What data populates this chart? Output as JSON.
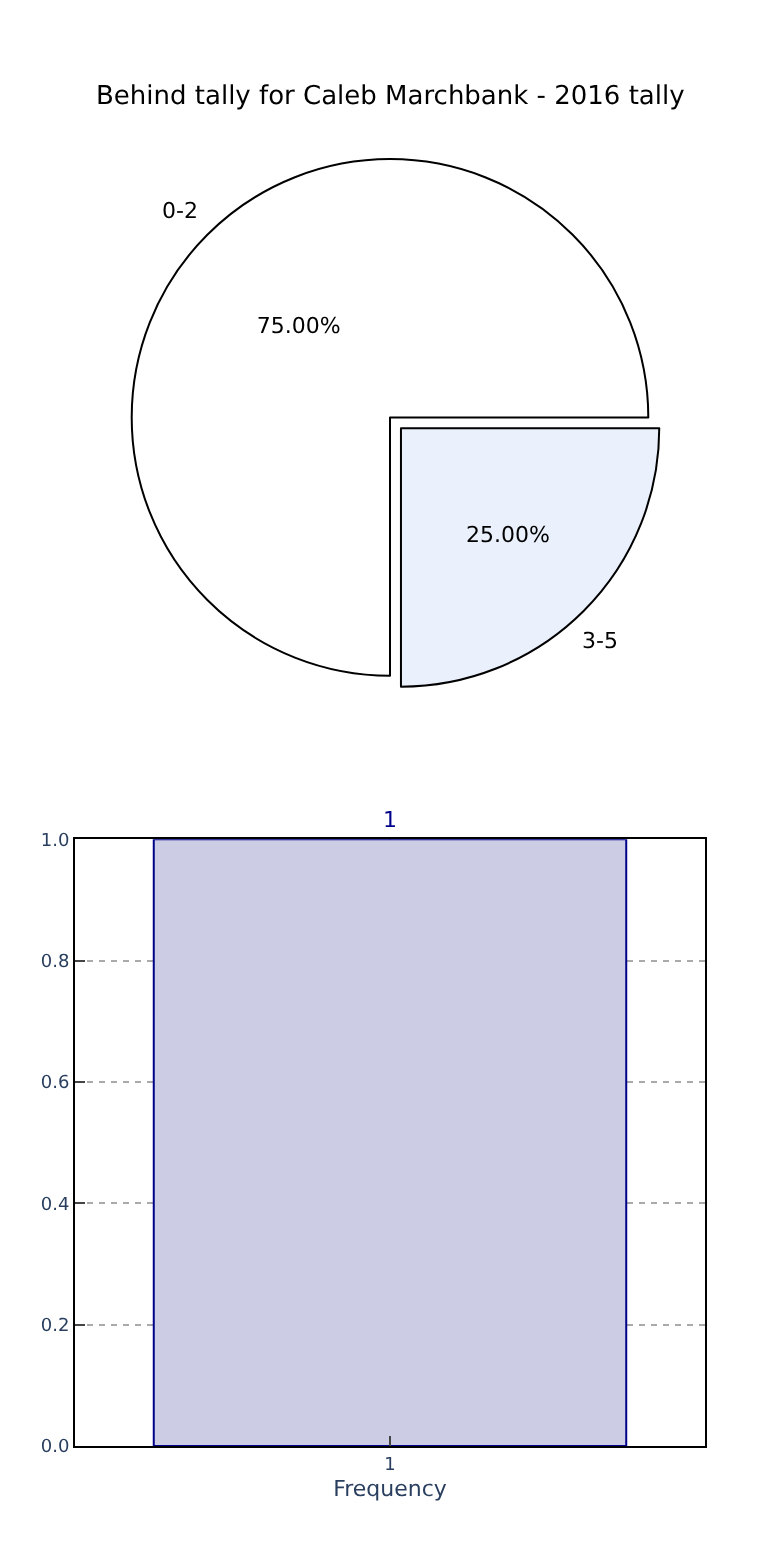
{
  "chart_data": [
    {
      "type": "pie",
      "title": "Behind tally for Caleb Marchbank - 2016 tally",
      "categories": [
        "0-2",
        "3-5"
      ],
      "values": [
        75,
        25
      ],
      "colors": [
        "#ffffff",
        "#eaf0fc"
      ],
      "value_labels": [
        "75.00%",
        "25.00%"
      ]
    },
    {
      "type": "bar",
      "categories": [
        "1"
      ],
      "values": [
        1
      ],
      "color": "#cccce5",
      "xlabel": "Frequency",
      "ylim": [
        0,
        1
      ],
      "yticks": [
        {
          "value": 0,
          "label": "0.0"
        },
        {
          "value": 0.2,
          "label": "0.2"
        },
        {
          "value": 0.4,
          "label": "0.4"
        },
        {
          "value": 0.6,
          "label": "0.6"
        },
        {
          "value": 0.8,
          "label": "0.8"
        },
        {
          "value": 1,
          "label": "1.0"
        }
      ],
      "grid": true,
      "data_labels": true
    }
  ]
}
